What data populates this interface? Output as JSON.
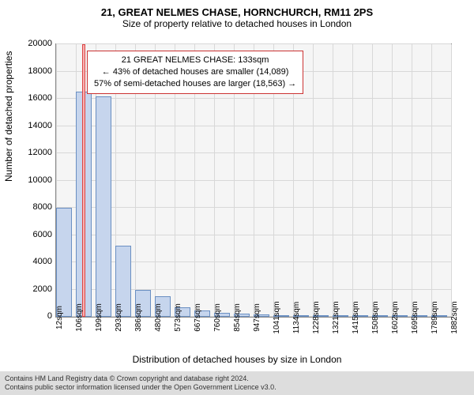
{
  "title_main": "21, GREAT NELMES CHASE, HORNCHURCH, RM11 2PS",
  "title_sub": "Size of property relative to detached houses in London",
  "chart": {
    "type": "histogram",
    "background_color": "#f5f5f5",
    "grid_color": "#d8d8d8",
    "bar_fill": "#c6d5ed",
    "bar_border": "#6a8fc2",
    "highlight_fill": "#f6b3b3",
    "highlight_border": "#d44",
    "ylim": [
      0,
      20000
    ],
    "ytick_step": 2000,
    "xticks": [
      "12sqm",
      "106sqm",
      "199sqm",
      "293sqm",
      "386sqm",
      "480sqm",
      "573sqm",
      "667sqm",
      "760sqm",
      "854sqm",
      "947sqm",
      "1041sqm",
      "1134sqm",
      "1228sqm",
      "1321sqm",
      "1415sqm",
      "1508sqm",
      "1602sqm",
      "1695sqm",
      "1789sqm",
      "1882sqm"
    ],
    "bars": [
      {
        "x": 0,
        "value": 8000
      },
      {
        "x": 25,
        "value": 16500
      },
      {
        "x": 50,
        "value": 16200
      },
      {
        "x": 75,
        "value": 5200
      },
      {
        "x": 100,
        "value": 2000
      },
      {
        "x": 125,
        "value": 1500
      },
      {
        "x": 150,
        "value": 700
      },
      {
        "x": 175,
        "value": 450
      },
      {
        "x": 200,
        "value": 300
      },
      {
        "x": 225,
        "value": 250
      },
      {
        "x": 250,
        "value": 180
      },
      {
        "x": 275,
        "value": 120
      },
      {
        "x": 300,
        "value": 100
      },
      {
        "x": 325,
        "value": 80
      },
      {
        "x": 350,
        "value": 65
      },
      {
        "x": 375,
        "value": 55
      },
      {
        "x": 400,
        "value": 48
      },
      {
        "x": 425,
        "value": 40
      },
      {
        "x": 450,
        "value": 35
      },
      {
        "x": 475,
        "value": 30
      }
    ],
    "highlight": {
      "x": 33,
      "value": 20000
    },
    "ylabel": "Number of detached properties",
    "xlabel": "Distribution of detached houses by size in London",
    "title_fontsize": 13,
    "label_fontsize": 12,
    "tick_fontsize": 11
  },
  "annotation": {
    "line1": "21 GREAT NELMES CHASE: 133sqm",
    "line2": "← 43% of detached houses are smaller (14,089)",
    "line3": "57% of semi-detached houses are larger (18,563) →",
    "border_color": "#cc3333",
    "background": "#ffffff"
  },
  "footer": {
    "line1": "Contains HM Land Registry data © Crown copyright and database right 2024.",
    "line2": "Contains public sector information licensed under the Open Government Licence v3.0."
  }
}
